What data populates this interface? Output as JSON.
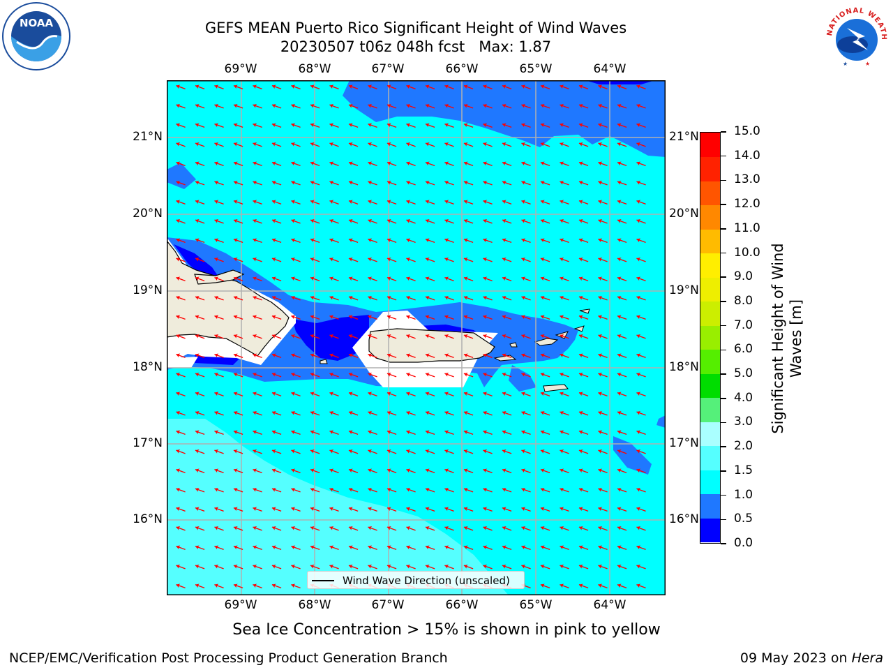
{
  "title": {
    "line1": "GEFS MEAN Puerto Rico Significant Height of Wind Waves",
    "line2": "20230507 t06z 048h fcst   Max: 1.87"
  },
  "logos": {
    "left": "NOAA",
    "right": "NATIONAL WEATHER SERVICE"
  },
  "map": {
    "lon_labels": [
      "69°W",
      "68°W",
      "67°W",
      "66°W",
      "65°W",
      "64°W"
    ],
    "lat_labels": [
      "21°N",
      "20°N",
      "19°N",
      "18°N",
      "17°N",
      "16°N"
    ],
    "lon_range": [
      -69.8,
      -63.5
    ],
    "lat_range": [
      15.05,
      21.75
    ],
    "legend_label": "Wind Wave Direction (unscaled)",
    "wave_direction": "toward west-northwest",
    "colors": {
      "land": "#efecdc",
      "band_0_0_5": "#0000ff",
      "band_0_5_1_0": "#1f78ff",
      "band_1_0_1_5": "#00ffff",
      "band_1_5_2_0": "#55ffff",
      "arrow": "#ff0000",
      "grid": "#b0b0b0"
    }
  },
  "colorbar": {
    "title": "Significant Height of Wind Waves [m]",
    "title_line1": "Significant Height of Wind",
    "title_line2": "Waves [m]",
    "ticks": [
      "0.0",
      "0.5",
      "1.0",
      "1.5",
      "2.0",
      "3.0",
      "4.0",
      "5.0",
      "6.0",
      "7.0",
      "8.0",
      "9.0",
      "10.0",
      "11.0",
      "12.0",
      "13.0",
      "14.0",
      "15.0"
    ],
    "colors": [
      "#0000ff",
      "#1f78ff",
      "#00ffff",
      "#55ffff",
      "#aaffff",
      "#55f07a",
      "#00dd00",
      "#55ee00",
      "#99ee00",
      "#ccee00",
      "#eeee00",
      "#ffee00",
      "#ffbb00",
      "#ff8800",
      "#ff5500",
      "#ff2200",
      "#ff0000"
    ]
  },
  "note": "Sea Ice Concentration > 15% is shown in pink to yellow",
  "footer": {
    "left": "NCEP/EMC/Verification Post Processing Product Generation Branch",
    "date": "09 May 2023 on ",
    "machine": "Hera"
  }
}
